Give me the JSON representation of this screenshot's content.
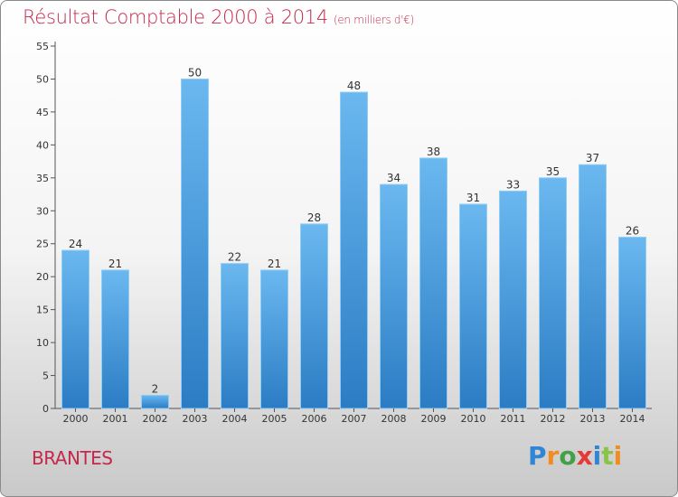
{
  "title": "Résultat Comptable 2000 à 2014",
  "subtitle": "(en milliers d'€)",
  "place": "BRANTES",
  "logo": {
    "letters": [
      "P",
      "r",
      "o",
      "x",
      "i",
      "t",
      "i"
    ],
    "colors": [
      "#2e86d4",
      "#f28c1e",
      "#43a047",
      "#e53935",
      "#2e86d4",
      "#8bc34a",
      "#f28c1e"
    ]
  },
  "colors": {
    "accent": "#c4284a",
    "bar_light": "#6bb8f0",
    "bar_dark": "#2b7cc4"
  },
  "chart_data": {
    "type": "bar",
    "categories": [
      "2000",
      "2001",
      "2002",
      "2003",
      "2004",
      "2005",
      "2006",
      "2007",
      "2008",
      "2009",
      "2010",
      "2011",
      "2012",
      "2013",
      "2014"
    ],
    "values": [
      24,
      21,
      2,
      50,
      22,
      21,
      28,
      48,
      34,
      38,
      31,
      33,
      35,
      37,
      26
    ],
    "ylim": [
      0,
      55
    ],
    "yticks": [
      0,
      5,
      10,
      15,
      20,
      25,
      30,
      35,
      40,
      45,
      50,
      55
    ],
    "grid": false,
    "legend": "none"
  }
}
